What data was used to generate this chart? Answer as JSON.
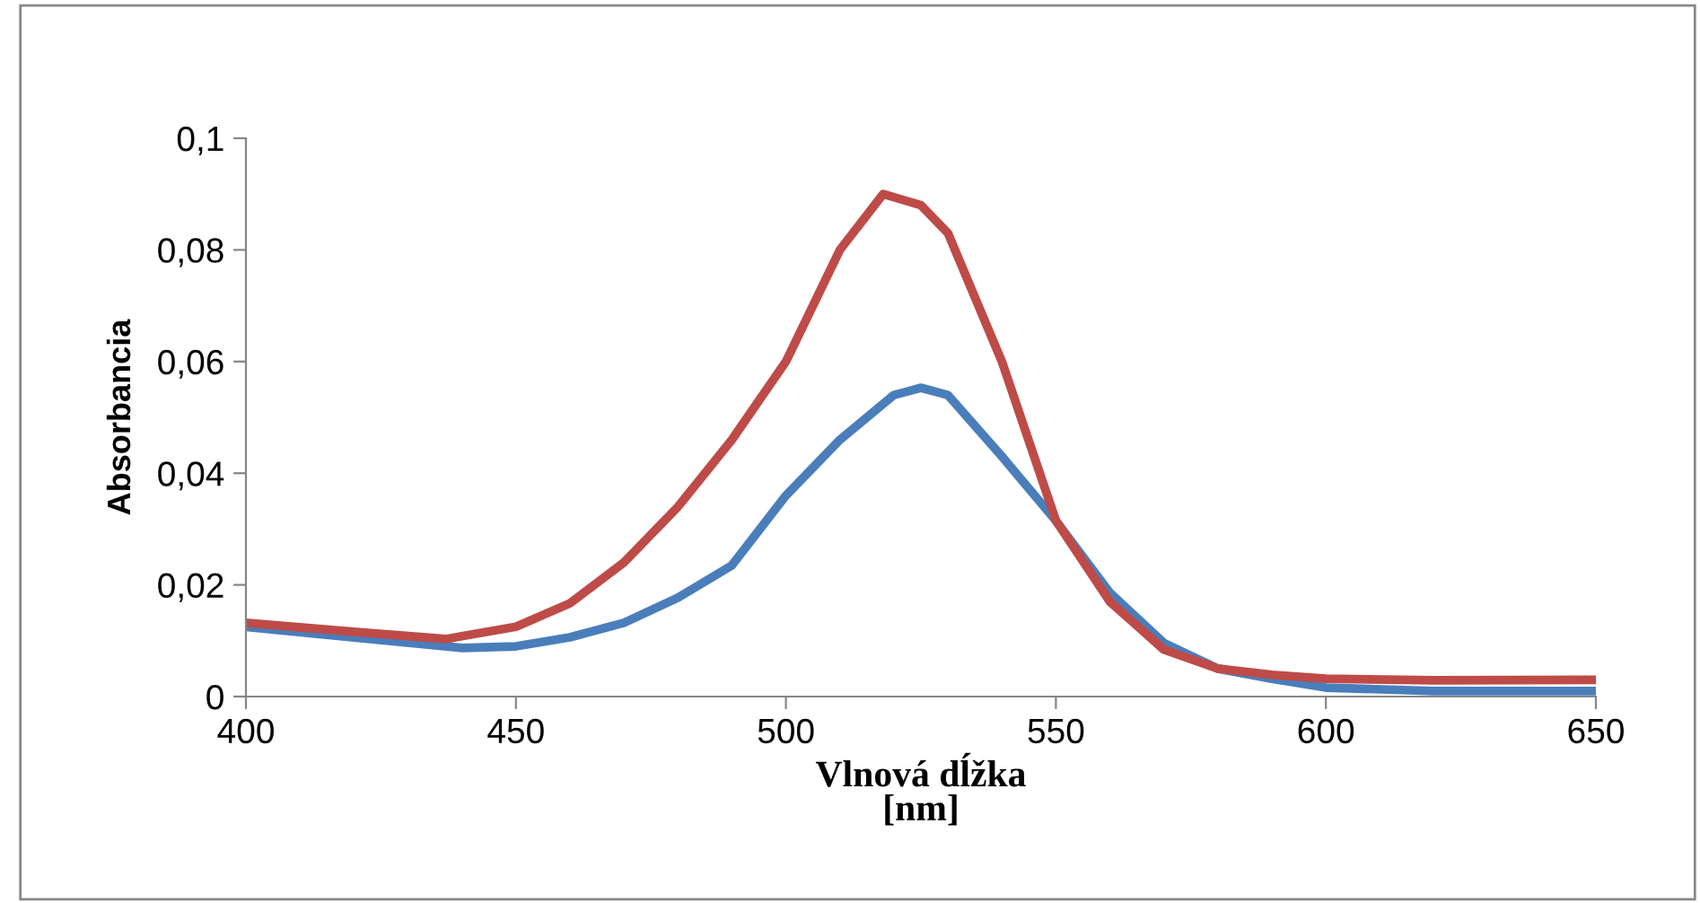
{
  "chart_data": {
    "type": "line",
    "xlabel": "Vlnová dĺžka\n[nm]",
    "ylabel": "Absorbancia",
    "xlim": [
      400,
      650
    ],
    "xticks": [
      400,
      450,
      500,
      550,
      600,
      650
    ],
    "ylim": [
      0,
      0.1
    ],
    "yticks": [
      {
        "value": 0,
        "label": "0"
      },
      {
        "value": 0.02,
        "label": "0,02"
      },
      {
        "value": 0.04,
        "label": "0,04"
      },
      {
        "value": 0.06,
        "label": "0,06"
      },
      {
        "value": 0.08,
        "label": "0,08"
      },
      {
        "value": 0.1,
        "label": "0,1"
      }
    ],
    "grid": false,
    "legend": false,
    "marker": "none",
    "line_style": "solid",
    "series": [
      {
        "color": "#4a7ebb",
        "x": [
          400,
          420,
          440,
          450,
          460,
          470,
          480,
          490,
          500,
          510,
          520,
          525,
          530,
          540,
          550,
          560,
          570,
          580,
          590,
          600,
          620,
          650
        ],
        "values": [
          0.0125,
          0.0106,
          0.0087,
          0.009,
          0.0106,
          0.0132,
          0.0177,
          0.0235,
          0.036,
          0.046,
          0.054,
          0.0553,
          0.054,
          0.043,
          0.0315,
          0.0186,
          0.0096,
          0.005,
          0.0032,
          0.0016,
          0.001,
          0.001
        ]
      },
      {
        "color": "#be4b48",
        "x": [
          400,
          420,
          437,
          450,
          460,
          470,
          480,
          490,
          500,
          510,
          518,
          525,
          530,
          540,
          550,
          560,
          570,
          580,
          590,
          600,
          620,
          650
        ],
        "values": [
          0.0132,
          0.0116,
          0.0103,
          0.0125,
          0.0167,
          0.024,
          0.034,
          0.046,
          0.06,
          0.08,
          0.09,
          0.088,
          0.083,
          0.06,
          0.0315,
          0.017,
          0.0084,
          0.005,
          0.0039,
          0.0032,
          0.0029,
          0.003
        ]
      }
    ]
  }
}
